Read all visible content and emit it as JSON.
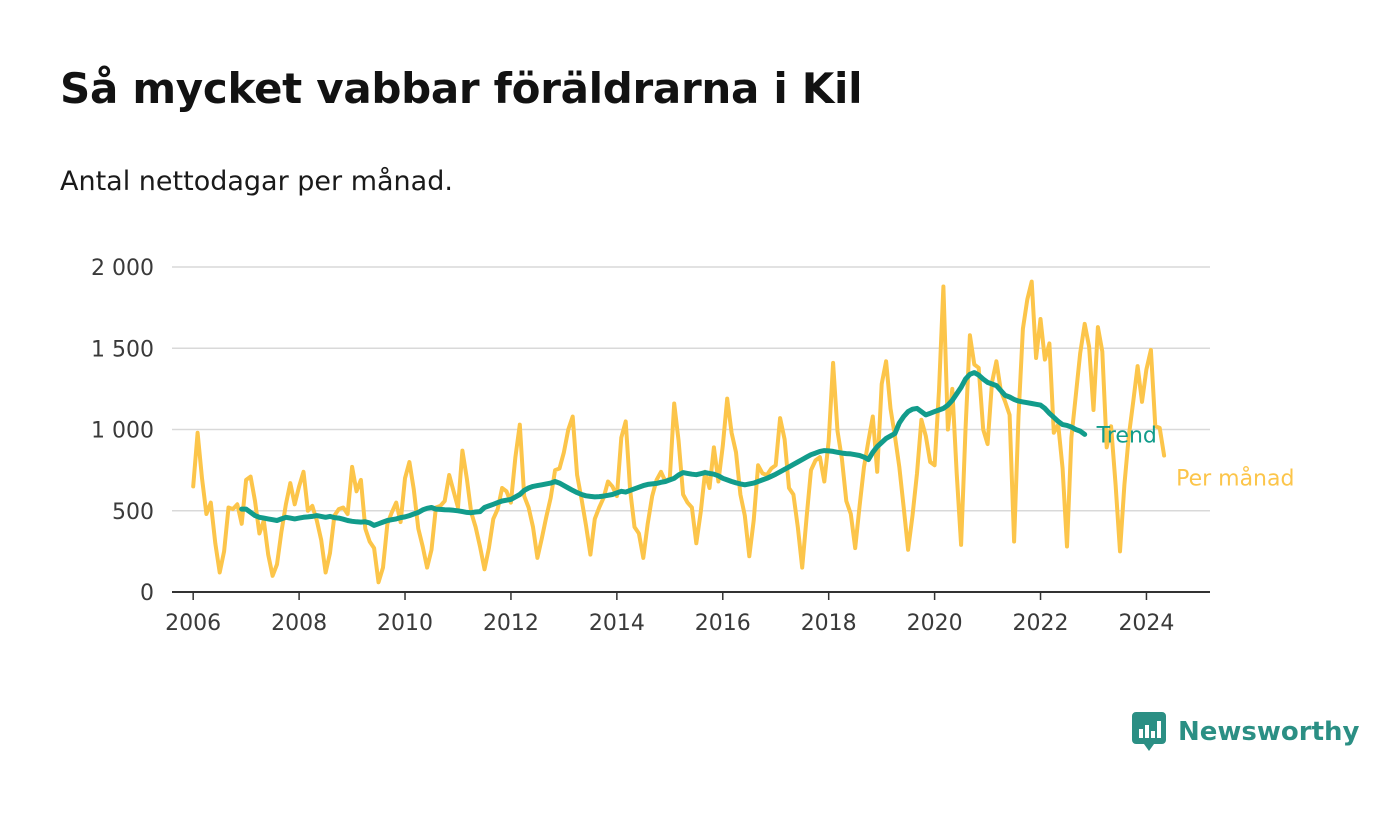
{
  "brand": {
    "name": "Newsworthy",
    "color": "#2b8f84",
    "icon": "newsworthy-chart-bubble-icon"
  },
  "chart_data": {
    "type": "line",
    "title": "Så mycket vabbar föräldrarna i Kil",
    "subtitle": "Antal nettodagar per månad.",
    "xlabel": "",
    "ylabel": "",
    "xlim": [
      2005.6,
      2025.2
    ],
    "ylim": [
      0,
      2000
    ],
    "x_ticks": [
      2006,
      2008,
      2010,
      2012,
      2014,
      2016,
      2018,
      2020,
      2022,
      2024
    ],
    "y_ticks": [
      {
        "value": 0,
        "label": "0"
      },
      {
        "value": 500,
        "label": "500"
      },
      {
        "value": 1000,
        "label": "1 000"
      },
      {
        "value": 1500,
        "label": "1 500"
      },
      {
        "value": 2000,
        "label": "2 000"
      }
    ],
    "grid": "horizontal",
    "legend": "direct-labels-right",
    "series": [
      {
        "name": "Per månad",
        "color": "#fcc54a",
        "start": "2006-01",
        "values": [
          650,
          980,
          700,
          480,
          550,
          300,
          120,
          250,
          520,
          510,
          540,
          420,
          690,
          710,
          560,
          360,
          440,
          230,
          100,
          170,
          370,
          540,
          670,
          540,
          650,
          740,
          500,
          530,
          440,
          320,
          120,
          240,
          470,
          510,
          520,
          480,
          770,
          620,
          690,
          390,
          310,
          270,
          60,
          150,
          420,
          490,
          550,
          430,
          700,
          800,
          630,
          390,
          280,
          150,
          260,
          520,
          530,
          560,
          720,
          620,
          520,
          870,
          700,
          490,
          400,
          280,
          140,
          270,
          450,
          510,
          640,
          620,
          550,
          830,
          1030,
          590,
          520,
          400,
          210,
          330,
          460,
          580,
          750,
          760,
          860,
          1000,
          1080,
          720,
          570,
          410,
          230,
          450,
          520,
          580,
          680,
          650,
          590,
          950,
          1050,
          630,
          400,
          360,
          210,
          420,
          590,
          690,
          740,
          680,
          700,
          1160,
          930,
          600,
          550,
          520,
          300,
          490,
          740,
          640,
          890,
          680,
          900,
          1190,
          980,
          860,
          600,
          470,
          220,
          440,
          780,
          730,
          720,
          760,
          780,
          1070,
          940,
          640,
          600,
          400,
          150,
          460,
          750,
          810,
          830,
          680,
          930,
          1410,
          990,
          820,
          560,
          480,
          270,
          530,
          770,
          930,
          1080,
          740,
          1280,
          1420,
          1130,
          960,
          770,
          520,
          260,
          470,
          730,
          1060,
          960,
          800,
          780,
          1240,
          1880,
          1000,
          1250,
          730,
          290,
          1000,
          1580,
          1400,
          1380,
          1000,
          910,
          1290,
          1420,
          1240,
          1170,
          1090,
          310,
          1080,
          1620,
          1800,
          1910,
          1440,
          1680,
          1430,
          1530,
          980,
          1030,
          760,
          280,
          950,
          1210,
          1470,
          1650,
          1510,
          1120,
          1630,
          1480,
          890,
          1020,
          660,
          250,
          660,
          960,
          1170,
          1390,
          1170,
          1370,
          1490,
          1020,
          1010,
          840
        ]
      },
      {
        "name": "Trend",
        "color": "#129c8b",
        "start": "2006-12",
        "values": [
          510,
          510,
          490,
          470,
          460,
          455,
          450,
          445,
          440,
          450,
          460,
          455,
          450,
          455,
          460,
          462,
          465,
          470,
          465,
          460,
          465,
          458,
          455,
          448,
          440,
          435,
          432,
          430,
          432,
          425,
          410,
          420,
          430,
          440,
          445,
          450,
          458,
          462,
          470,
          480,
          490,
          505,
          515,
          520,
          510,
          508,
          506,
          505,
          503,
          500,
          495,
          490,
          488,
          492,
          495,
          520,
          530,
          540,
          550,
          560,
          565,
          570,
          585,
          600,
          625,
          640,
          650,
          655,
          660,
          665,
          670,
          680,
          670,
          655,
          640,
          625,
          612,
          600,
          592,
          588,
          585,
          587,
          590,
          595,
          600,
          610,
          620,
          615,
          625,
          635,
          645,
          655,
          662,
          665,
          668,
          675,
          680,
          690,
          700,
          720,
          735,
          730,
          725,
          722,
          728,
          735,
          730,
          725,
          715,
          700,
          690,
          680,
          672,
          665,
          660,
          665,
          670,
          680,
          690,
          700,
          712,
          725,
          740,
          755,
          770,
          785,
          800,
          815,
          830,
          845,
          855,
          865,
          870,
          868,
          865,
          860,
          855,
          852,
          850,
          845,
          840,
          830,
          815,
          860,
          895,
          920,
          945,
          960,
          975,
          1040,
          1080,
          1110,
          1125,
          1130,
          1110,
          1090,
          1100,
          1110,
          1120,
          1130,
          1150,
          1180,
          1220,
          1260,
          1310,
          1340,
          1350,
          1335,
          1310,
          1290,
          1280,
          1270,
          1240,
          1210,
          1200,
          1185,
          1175,
          1170,
          1165,
          1160,
          1155,
          1150,
          1130,
          1100,
          1075,
          1050,
          1030,
          1025,
          1015,
          1000,
          990,
          970
        ]
      }
    ]
  }
}
